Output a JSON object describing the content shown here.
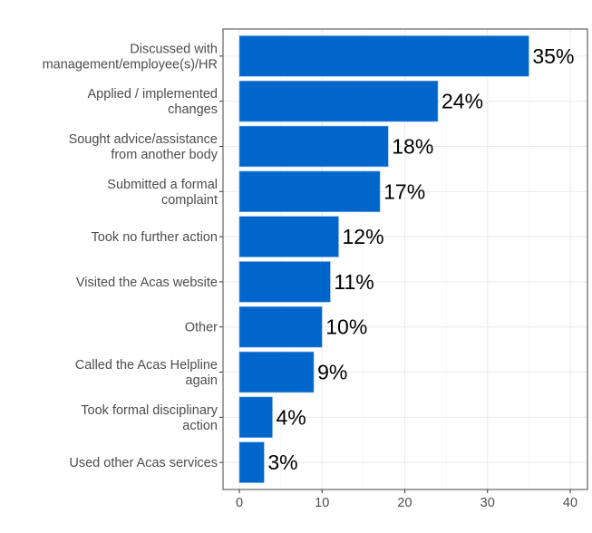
{
  "chart_data": {
    "type": "bar",
    "orientation": "horizontal",
    "categories": [
      [
        "Discussed with",
        "management/employee(s)/HR"
      ],
      [
        "Applied / implemented",
        "changes"
      ],
      [
        "Sought advice/assistance",
        "from another body"
      ],
      [
        "Submitted a formal",
        "complaint"
      ],
      [
        "Took no further action"
      ],
      [
        "Visited the Acas website"
      ],
      [
        "Other"
      ],
      [
        "Called the Acas Helpline",
        "again"
      ],
      [
        "Took formal disciplinary",
        "action"
      ],
      [
        "Used other Acas services"
      ]
    ],
    "values": [
      35,
      24,
      18,
      17,
      12,
      11,
      10,
      9,
      4,
      3
    ],
    "data_labels": [
      "35%",
      "24%",
      "18%",
      "17%",
      "12%",
      "11%",
      "10%",
      "9%",
      "4%",
      "3%"
    ],
    "xlim": [
      -2,
      42
    ],
    "x_ticks": [
      0,
      10,
      20,
      30,
      40
    ],
    "grid": true,
    "bar_color": "#0066CC",
    "title": "",
    "xlabel": "",
    "ylabel": ""
  }
}
